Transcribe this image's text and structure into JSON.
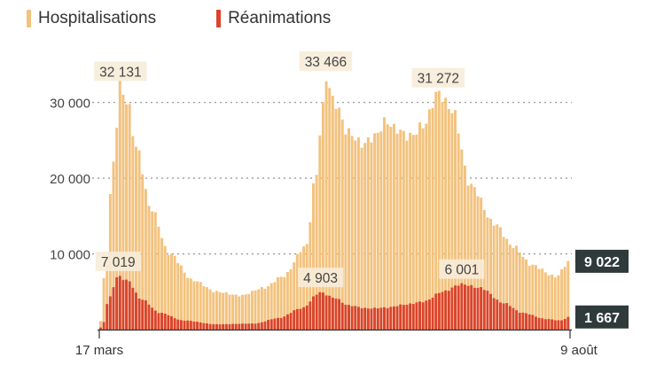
{
  "chart_data": {
    "type": "area",
    "title": "",
    "legend": [
      {
        "label": "Hospitalisations",
        "color": "#f3c27e"
      },
      {
        "label": "Réanimations",
        "color": "#d9452b"
      }
    ],
    "xlabel": "",
    "ylabel": "",
    "x_start_label": "17 mars",
    "x_end_label": "9 août",
    "ylim": [
      0,
      33466
    ],
    "y_ticks": [
      {
        "value": 10000,
        "label": "10 000"
      },
      {
        "value": 20000,
        "label": "20 000"
      },
      {
        "value": 30000,
        "label": "30 000"
      }
    ],
    "grid": "horizontal-dotted",
    "series": [
      {
        "name": "Hospitalisations",
        "color": "#f3c27e",
        "points": [
          [
            0,
            0
          ],
          [
            0.014,
            8000
          ],
          [
            0.03,
            22000
          ],
          [
            0.045,
            32131
          ],
          [
            0.06,
            30000
          ],
          [
            0.08,
            24000
          ],
          [
            0.11,
            16000
          ],
          [
            0.15,
            10000
          ],
          [
            0.2,
            6500
          ],
          [
            0.25,
            5000
          ],
          [
            0.3,
            4500
          ],
          [
            0.35,
            5500
          ],
          [
            0.39,
            7000
          ],
          [
            0.44,
            11000
          ],
          [
            0.46,
            20000
          ],
          [
            0.475,
            29000
          ],
          [
            0.481,
            33466
          ],
          [
            0.5,
            30000
          ],
          [
            0.53,
            26000
          ],
          [
            0.56,
            24500
          ],
          [
            0.585,
            25500
          ],
          [
            0.61,
            27500
          ],
          [
            0.63,
            26500
          ],
          [
            0.66,
            25500
          ],
          [
            0.69,
            27000
          ],
          [
            0.72,
            31272
          ],
          [
            0.75,
            29000
          ],
          [
            0.79,
            19000
          ],
          [
            0.84,
            14000
          ],
          [
            0.88,
            11000
          ],
          [
            0.92,
            8500
          ],
          [
            0.97,
            7000
          ],
          [
            1.0,
            9022
          ]
        ]
      },
      {
        "name": "Réanimations",
        "color": "#d9452b",
        "points": [
          [
            0,
            0
          ],
          [
            0.01,
            1000
          ],
          [
            0.02,
            4000
          ],
          [
            0.04,
            7019
          ],
          [
            0.06,
            6500
          ],
          [
            0.09,
            4000
          ],
          [
            0.13,
            2200
          ],
          [
            0.18,
            1200
          ],
          [
            0.25,
            700
          ],
          [
            0.33,
            800
          ],
          [
            0.38,
            1500
          ],
          [
            0.43,
            2800
          ],
          [
            0.47,
            4903
          ],
          [
            0.5,
            4200
          ],
          [
            0.53,
            3200
          ],
          [
            0.57,
            2800
          ],
          [
            0.61,
            2900
          ],
          [
            0.65,
            3300
          ],
          [
            0.69,
            3700
          ],
          [
            0.73,
            5000
          ],
          [
            0.77,
            6001
          ],
          [
            0.81,
            5500
          ],
          [
            0.86,
            3500
          ],
          [
            0.9,
            2200
          ],
          [
            0.95,
            1400
          ],
          [
            0.98,
            1200
          ],
          [
            1.0,
            1667
          ]
        ]
      }
    ],
    "peak_labels": [
      {
        "series": "Hospitalisations",
        "x": 0.045,
        "value": 32131,
        "text": "32 131"
      },
      {
        "series": "Hospitalisations",
        "x": 0.481,
        "value": 33466,
        "text": "33 466"
      },
      {
        "series": "Hospitalisations",
        "x": 0.72,
        "value": 31272,
        "text": "31 272"
      },
      {
        "series": "Réanimations",
        "x": 0.04,
        "value": 7019,
        "text": "7 019"
      },
      {
        "series": "Réanimations",
        "x": 0.47,
        "value": 4903,
        "text": "4 903"
      },
      {
        "series": "Réanimations",
        "x": 0.77,
        "value": 6001,
        "text": "6 001"
      }
    ],
    "end_labels": [
      {
        "series": "Hospitalisations",
        "value": 9022,
        "text": "9 022"
      },
      {
        "series": "Réanimations",
        "value": 1667,
        "text": "1 667"
      }
    ]
  }
}
